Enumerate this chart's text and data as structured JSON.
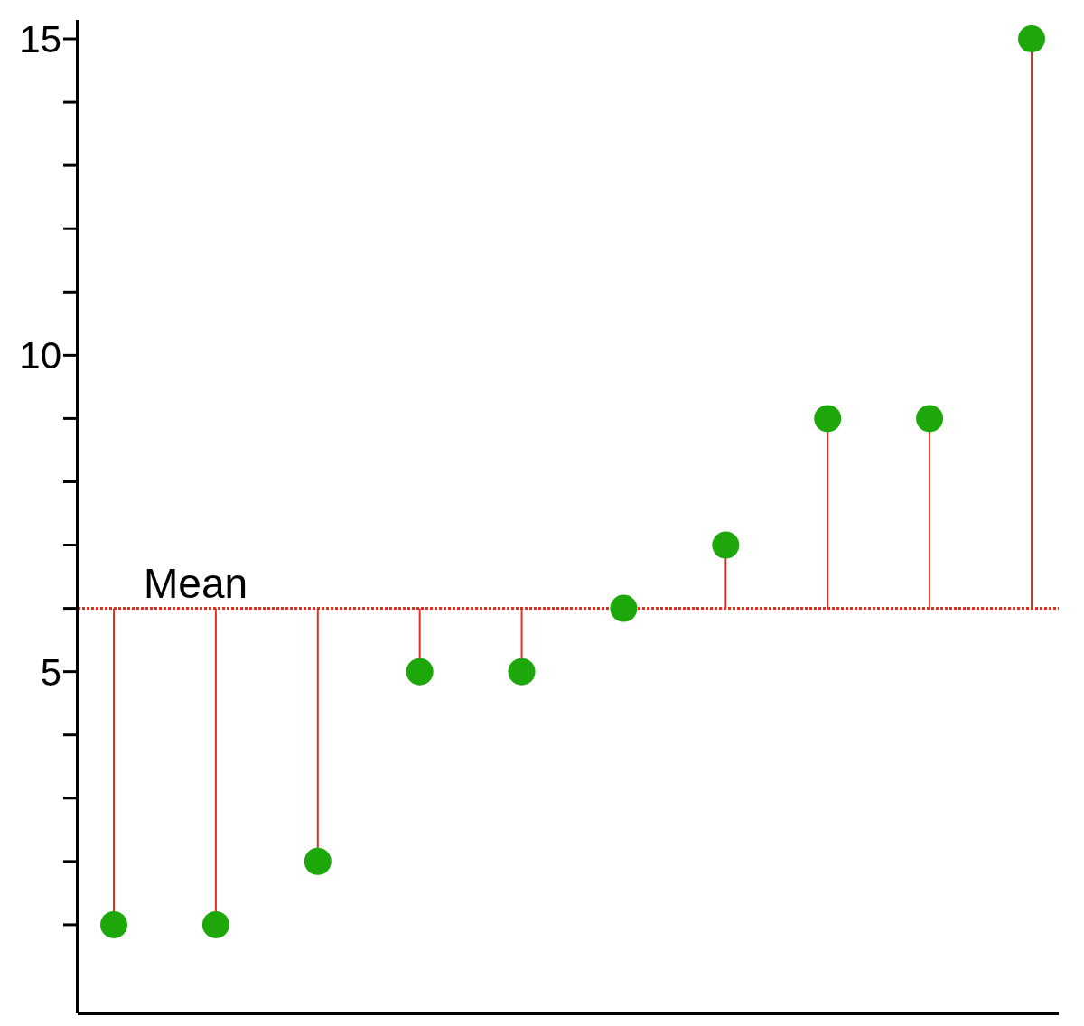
{
  "chart_data": {
    "type": "lollipop",
    "categories": [
      null,
      null,
      null,
      null,
      null,
      null,
      null,
      null,
      null,
      null
    ],
    "values": [
      1,
      1,
      2,
      5,
      5,
      6,
      7,
      9,
      9,
      15
    ],
    "errors": [
      [
        1,
        6
      ],
      [
        1,
        6
      ],
      [
        2,
        6
      ],
      [
        5,
        6
      ],
      [
        5,
        6
      ],
      null,
      [
        6,
        7
      ],
      [
        6,
        9
      ],
      [
        6,
        9
      ],
      [
        6,
        15
      ]
    ],
    "color": "#1ea70a",
    "marker": "circle",
    "tick_labels": "y",
    "ylim": [
      -0.4,
      15.3
    ],
    "yticks": [
      {
        "value": 1,
        "label": null
      },
      {
        "value": 2,
        "label": null
      },
      {
        "value": 3,
        "label": null
      },
      {
        "value": 4,
        "label": null
      },
      5,
      {
        "value": 6,
        "label": null
      },
      {
        "value": 7,
        "label": null
      },
      {
        "value": 8,
        "label": null
      },
      {
        "value": 9,
        "label": null
      },
      10,
      {
        "value": 11,
        "label": null
      },
      {
        "value": 12,
        "label": null
      },
      {
        "value": 13,
        "label": null
      },
      {
        "value": 14,
        "label": null
      },
      15
    ],
    "ref_lines": [
      {
        "axis": "y",
        "value": 6,
        "label": "Mean",
        "color": "#e0301e",
        "line_style": "dotted"
      }
    ]
  }
}
